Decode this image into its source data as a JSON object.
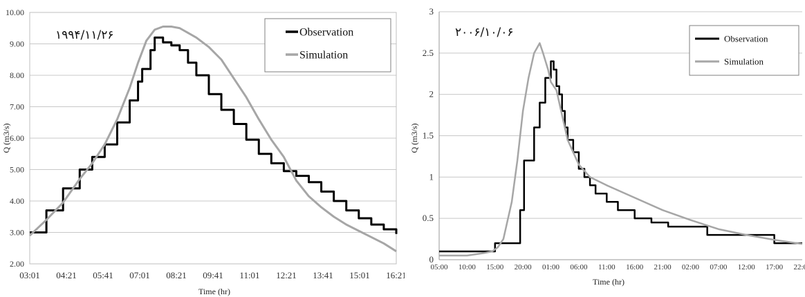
{
  "chart_data": [
    {
      "type": "line",
      "date_label": "۱۹۹۴/۱۱/۲۶",
      "xlabel": "Time  (hr)",
      "ylabel": "Q (m3/s)",
      "ylim": [
        2.0,
        10.0
      ],
      "yticks": [
        "2.00",
        "3.00",
        "4.00",
        "5.00",
        "6.00",
        "7.00",
        "8.00",
        "9.00",
        "10.00"
      ],
      "ytick_values": [
        2,
        3,
        4,
        5,
        6,
        7,
        8,
        9,
        10
      ],
      "xticks": [
        "03:01",
        "04:21",
        "05:41",
        "07:01",
        "08:21",
        "09:41",
        "11:01",
        "12:21",
        "13:41",
        "15:01",
        "16:21"
      ],
      "x_unit": "minutes_from_03:01",
      "xlim": [
        0,
        880
      ],
      "grid": "horizontal",
      "legend_position": "top-right",
      "series": [
        {
          "name": "Observation",
          "color": "#000000",
          "step": true,
          "x": [
            0,
            40,
            80,
            120,
            150,
            180,
            210,
            240,
            260,
            270,
            290,
            300,
            320,
            340,
            360,
            380,
            400,
            430,
            460,
            490,
            520,
            550,
            580,
            610,
            640,
            670,
            700,
            730,
            760,
            790,
            820,
            850,
            880
          ],
          "y": [
            3.0,
            3.7,
            4.4,
            5.0,
            5.4,
            5.8,
            6.5,
            7.2,
            7.8,
            8.2,
            8.8,
            9.2,
            9.05,
            8.95,
            8.8,
            8.4,
            8.0,
            7.4,
            6.9,
            6.45,
            5.95,
            5.5,
            5.2,
            4.95,
            4.8,
            4.6,
            4.3,
            4.0,
            3.7,
            3.45,
            3.25,
            3.1,
            2.95
          ]
        },
        {
          "name": "Simulation",
          "color": "#a6a6a6",
          "step": false,
          "x": [
            0,
            40,
            80,
            120,
            150,
            180,
            210,
            240,
            260,
            280,
            300,
            320,
            340,
            360,
            380,
            400,
            430,
            460,
            490,
            520,
            550,
            580,
            610,
            640,
            670,
            700,
            730,
            760,
            790,
            820,
            850,
            880
          ],
          "y": [
            2.9,
            3.4,
            3.95,
            4.7,
            5.2,
            5.8,
            6.6,
            7.6,
            8.4,
            9.1,
            9.45,
            9.55,
            9.55,
            9.5,
            9.35,
            9.2,
            8.9,
            8.5,
            7.9,
            7.3,
            6.6,
            5.95,
            5.4,
            4.65,
            4.15,
            3.8,
            3.5,
            3.25,
            3.05,
            2.85,
            2.65,
            2.4
          ]
        }
      ]
    },
    {
      "type": "line",
      "date_label": "۲۰۰۶/۱۰/۰۶",
      "xlabel": "Time  (hr)",
      "ylabel": "Q (m3/s)",
      "ylim": [
        0,
        3
      ],
      "yticks": [
        "0",
        "0.5",
        "1",
        "1.5",
        "2",
        "2.5",
        "3"
      ],
      "ytick_values": [
        0,
        0.5,
        1,
        1.5,
        2,
        2.5,
        3
      ],
      "xticks": [
        "05:00",
        "10:00",
        "15:00",
        "20:00",
        "01:00",
        "06:00",
        "11:00",
        "16:00",
        "21:00",
        "02:00",
        "07:00",
        "12:00",
        "17:00",
        "22:00"
      ],
      "x_unit": "hours_from_05:00",
      "xlim": [
        0,
        65
      ],
      "grid": "horizontal",
      "legend_position": "top-right",
      "series": [
        {
          "name": "Observation",
          "color": "#000000",
          "step": true,
          "x": [
            0,
            9,
            10,
            11,
            13.5,
            14.5,
            15.2,
            16,
            17,
            18,
            19,
            20,
            20.5,
            21,
            21.5,
            22,
            22.5,
            23,
            24,
            25,
            26,
            27,
            28,
            30,
            32,
            35,
            38,
            41,
            44,
            48,
            51,
            57,
            60,
            63,
            65
          ],
          "y": [
            0.1,
            0.1,
            0.2,
            0.2,
            0.2,
            0.6,
            1.2,
            1.2,
            1.6,
            1.9,
            2.2,
            2.4,
            2.3,
            2.1,
            2.0,
            1.8,
            1.6,
            1.45,
            1.3,
            1.1,
            1.0,
            0.9,
            0.8,
            0.7,
            0.6,
            0.5,
            0.45,
            0.4,
            0.4,
            0.3,
            0.3,
            0.3,
            0.2,
            0.2,
            0.2
          ]
        },
        {
          "name": "Simulation",
          "color": "#a6a6a6",
          "step": false,
          "x": [
            0,
            5,
            8,
            9.5,
            10.5,
            11.5,
            12,
            13,
            14,
            15,
            16,
            17,
            18,
            18.6,
            19.5,
            20,
            20.5,
            21,
            22,
            23,
            24,
            25,
            27,
            30,
            35,
            40,
            45,
            50,
            55,
            60,
            65
          ],
          "y": [
            0.05,
            0.05,
            0.08,
            0.1,
            0.15,
            0.25,
            0.4,
            0.7,
            1.2,
            1.8,
            2.2,
            2.5,
            2.62,
            2.5,
            2.3,
            2.15,
            2.1,
            2.05,
            1.75,
            1.45,
            1.3,
            1.15,
            1.0,
            0.9,
            0.75,
            0.6,
            0.48,
            0.37,
            0.3,
            0.24,
            0.19
          ]
        }
      ]
    }
  ]
}
